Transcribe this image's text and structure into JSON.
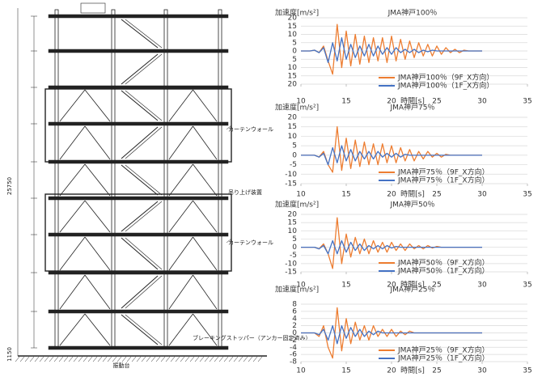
{
  "drawing": {
    "labels": [
      "カーテンウォール",
      "吊り上げ装置",
      "カーテンウォール",
      "ブレーキングストッパー（アンカー固定済み）",
      "振動台",
      "25750",
      "1150"
    ]
  },
  "chart_data": [
    {
      "type": "line",
      "title": "JMA神戸100％",
      "ylabel": "加速度[m/s²]",
      "xlabel": "時間[s]",
      "x": [
        10,
        10.5,
        11,
        11.5,
        12,
        12.5,
        13,
        13.5,
        14,
        14.5,
        15,
        15.5,
        16,
        16.5,
        17,
        17.5,
        18,
        18.5,
        19,
        19.5,
        20,
        20.5,
        21,
        21.5,
        22,
        22.5,
        23,
        23.5,
        24,
        24.5,
        25,
        25.5,
        26,
        26.5,
        27,
        27.5,
        28,
        28.5,
        29,
        29.5,
        30
      ],
      "series": [
        {
          "name": "JMA神戸100％（9F_X方向）",
          "color": "#ed7d31",
          "values": [
            0,
            0,
            0,
            0.5,
            -1,
            3,
            -6,
            -14,
            16,
            -10,
            12,
            -9,
            10,
            -8,
            9,
            -7,
            8,
            -6,
            8,
            -7,
            9,
            -6,
            7,
            -5,
            6,
            -4,
            5,
            -3,
            4,
            -3,
            3,
            -2,
            2,
            -1,
            1,
            -1,
            0.5,
            0,
            0,
            0,
            0
          ]
        },
        {
          "name": "JMA神戸100％（1F_X方向）",
          "color": "#4472c4",
          "values": [
            0,
            0,
            0,
            0.5,
            -1,
            2,
            -7,
            5,
            -6,
            8,
            -5,
            4,
            -4,
            3,
            -3,
            4,
            -3,
            3,
            -2,
            2,
            -2,
            2,
            -1,
            1,
            -1,
            1,
            -1,
            0.5,
            -0.5,
            0.5,
            0,
            0,
            0,
            0,
            0,
            0,
            0,
            0,
            0,
            0,
            0
          ]
        }
      ],
      "xlim": [
        10,
        35
      ],
      "xticks": [
        10,
        15,
        20,
        25,
        30,
        35
      ],
      "ylim": [
        -20,
        20
      ],
      "yticks": [
        20,
        15,
        10,
        5,
        0,
        {
          "value": -5,
          "label": "5"
        },
        {
          "value": -10,
          "label": "10"
        },
        {
          "value": -15,
          "label": "15"
        },
        {
          "value": -20,
          "label": "20"
        }
      ],
      "grid": true,
      "legend": "lower right"
    },
    {
      "type": "line",
      "title": "JMA神戸75％",
      "ylabel": "加速度[m/s²]",
      "xlabel": "時間[s]",
      "x": [
        10,
        10.5,
        11,
        11.5,
        12,
        12.5,
        13,
        13.5,
        14,
        14.5,
        15,
        15.5,
        16,
        16.5,
        17,
        17.5,
        18,
        18.5,
        19,
        19.5,
        20,
        20.5,
        21,
        21.5,
        22,
        22.5,
        23,
        23.5,
        24,
        24.5,
        25,
        25.5,
        26,
        26.5,
        27,
        27.5,
        28,
        28.5,
        29,
        29.5,
        30
      ],
      "series": [
        {
          "name": "JMA神戸75％（9F_X方向）",
          "color": "#ed7d31",
          "values": [
            0,
            0,
            0,
            0,
            -1,
            2,
            -5,
            -9,
            15,
            -8,
            9,
            -7,
            8,
            -6,
            7,
            -5,
            6,
            -5,
            6,
            -4,
            5,
            -4,
            4,
            -3,
            3,
            -3,
            2,
            -2,
            2,
            -1,
            1,
            -1,
            0.5,
            0,
            0,
            0,
            0,
            0,
            0,
            0,
            0
          ]
        },
        {
          "name": "JMA神戸75％（1F_X方向）",
          "color": "#4472c4",
          "values": [
            0,
            0,
            0,
            0,
            -1,
            1,
            -5,
            4,
            -4,
            5,
            -3,
            3,
            -3,
            2,
            -2,
            2,
            -2,
            2,
            -1,
            1,
            -1,
            1,
            -1,
            0.5,
            0,
            0,
            0,
            0,
            0,
            0,
            0,
            0,
            0,
            0,
            0,
            0,
            0,
            0,
            0,
            0,
            0
          ]
        }
      ],
      "xlim": [
        10,
        35
      ],
      "xticks": [
        10,
        15,
        20,
        25,
        30,
        35
      ],
      "ylim": [
        -15,
        20
      ],
      "yticks": [
        20,
        15,
        10,
        5,
        0,
        -5,
        -10,
        -15
      ],
      "grid": true,
      "legend": "lower right"
    },
    {
      "type": "line",
      "title": "JMA神戸50％",
      "ylabel": "加速度[m/s²]",
      "xlabel": "時間[s]",
      "x": [
        10,
        10.5,
        11,
        11.5,
        12,
        12.5,
        13,
        13.5,
        14,
        14.5,
        15,
        15.5,
        16,
        16.5,
        17,
        17.5,
        18,
        18.5,
        19,
        19.5,
        20,
        20.5,
        21,
        21.5,
        22,
        22.5,
        23,
        23.5,
        24,
        24.5,
        25,
        25.5,
        26,
        26.5,
        27,
        27.5,
        28,
        28.5,
        29,
        29.5,
        30
      ],
      "series": [
        {
          "name": "JMA神戸50％（9F_X方向）",
          "color": "#ed7d31",
          "values": [
            0,
            0,
            0,
            0,
            -1,
            2,
            -4,
            -13,
            18,
            -10,
            8,
            -6,
            6,
            -4,
            5,
            -4,
            4,
            -3,
            3,
            -3,
            3,
            -2,
            2,
            -2,
            2,
            -1,
            1,
            -1,
            1,
            -0.5,
            0.5,
            0,
            0,
            0,
            0,
            0,
            0,
            0,
            0,
            0,
            0
          ]
        },
        {
          "name": "JMA神戸50％（1F_X方向）",
          "color": "#4472c4",
          "values": [
            0,
            0,
            0,
            0,
            -1,
            1,
            -4,
            4,
            -4,
            4,
            -3,
            3,
            -2,
            2,
            -2,
            1,
            -1,
            1,
            -1,
            1,
            -0.5,
            0.5,
            0,
            0,
            0,
            0,
            0,
            0,
            0,
            0,
            0,
            0,
            0,
            0,
            0,
            0,
            0,
            0,
            0,
            0,
            0
          ]
        }
      ],
      "xlim": [
        10,
        35
      ],
      "xticks": [
        10,
        15,
        20,
        25,
        30,
        35
      ],
      "ylim": [
        -15,
        20
      ],
      "yticks": [
        20,
        15,
        10,
        5,
        0,
        -5,
        -10,
        -15
      ],
      "grid": true,
      "legend": "lower right"
    },
    {
      "type": "line",
      "title": "JMA神戸25％",
      "ylabel": "加速度[m/s²]",
      "xlabel": "時間[s]",
      "x": [
        10,
        10.5,
        11,
        11.5,
        12,
        12.5,
        13,
        13.5,
        14,
        14.5,
        15,
        15.5,
        16,
        16.5,
        17,
        17.5,
        18,
        18.5,
        19,
        19.5,
        20,
        20.5,
        21,
        21.5,
        22,
        22.5,
        23,
        23.5,
        24,
        24.5,
        25,
        25.5,
        26,
        26.5,
        27,
        27.5,
        28,
        28.5,
        29,
        29.5,
        30
      ],
      "series": [
        {
          "name": "JMA神戸25％（9F_X方向）",
          "color": "#ed7d31",
          "values": [
            0,
            0,
            0,
            0,
            -1,
            2,
            -4,
            -7,
            7,
            -5,
            4,
            -3,
            3,
            -2,
            2,
            -2,
            2,
            -1,
            1,
            -1,
            1,
            -1,
            0.5,
            -0.5,
            0.5,
            0,
            0,
            0,
            0,
            0,
            0,
            0,
            0,
            0,
            0,
            0,
            0,
            0,
            0,
            0,
            0
          ]
        },
        {
          "name": "JMA神戸25％（1F_X方向）",
          "color": "#4472c4",
          "values": [
            0,
            0,
            0,
            0,
            -0.5,
            1,
            -2,
            2,
            -3,
            2,
            -1.5,
            1.5,
            -1,
            1,
            -1,
            0.5,
            -0.5,
            0.5,
            0,
            0,
            0,
            0,
            0,
            0,
            0,
            0,
            0,
            0,
            0,
            0,
            0,
            0,
            0,
            0,
            0,
            0,
            0,
            0,
            0,
            0,
            0
          ]
        }
      ],
      "xlim": [
        10,
        35
      ],
      "xticks": [
        10,
        15,
        20,
        25,
        30,
        35
      ],
      "ylim": [
        -8,
        8
      ],
      "yticks": [
        8,
        6,
        4,
        2,
        0,
        -2,
        -4,
        -6,
        -8
      ],
      "grid": true,
      "legend": "lower right"
    }
  ]
}
